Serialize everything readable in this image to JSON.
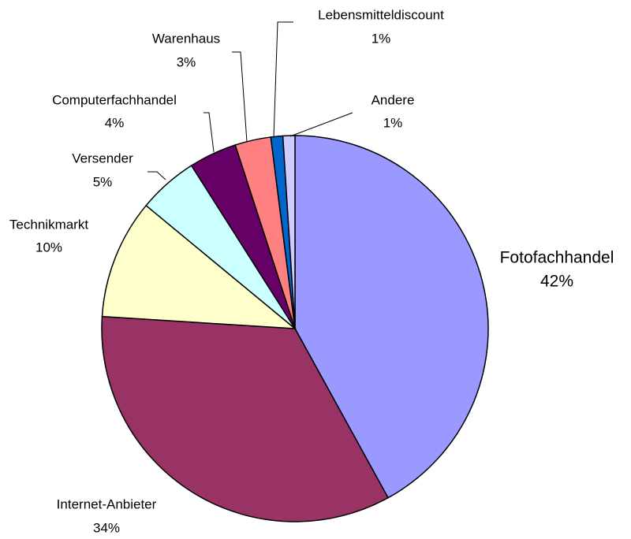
{
  "chart_data": {
    "type": "pie",
    "categories": [
      "Fotofachhandel",
      "Internet-Anbieter",
      "Technikmarkt",
      "Versender",
      "Computerfachhandel",
      "Warenhaus",
      "Lebensmitteldiscount",
      "Andere"
    ],
    "values": [
      42,
      34,
      10,
      5,
      4,
      3,
      1,
      1
    ],
    "value_labels": [
      "42%",
      "34%",
      "10%",
      "5%",
      "4%",
      "3%",
      "1%",
      "1%"
    ],
    "colors": [
      "#9999ff",
      "#993366",
      "#ffffcc",
      "#ccffff",
      "#660066",
      "#ff8080",
      "#0066cc",
      "#ccccff"
    ]
  }
}
